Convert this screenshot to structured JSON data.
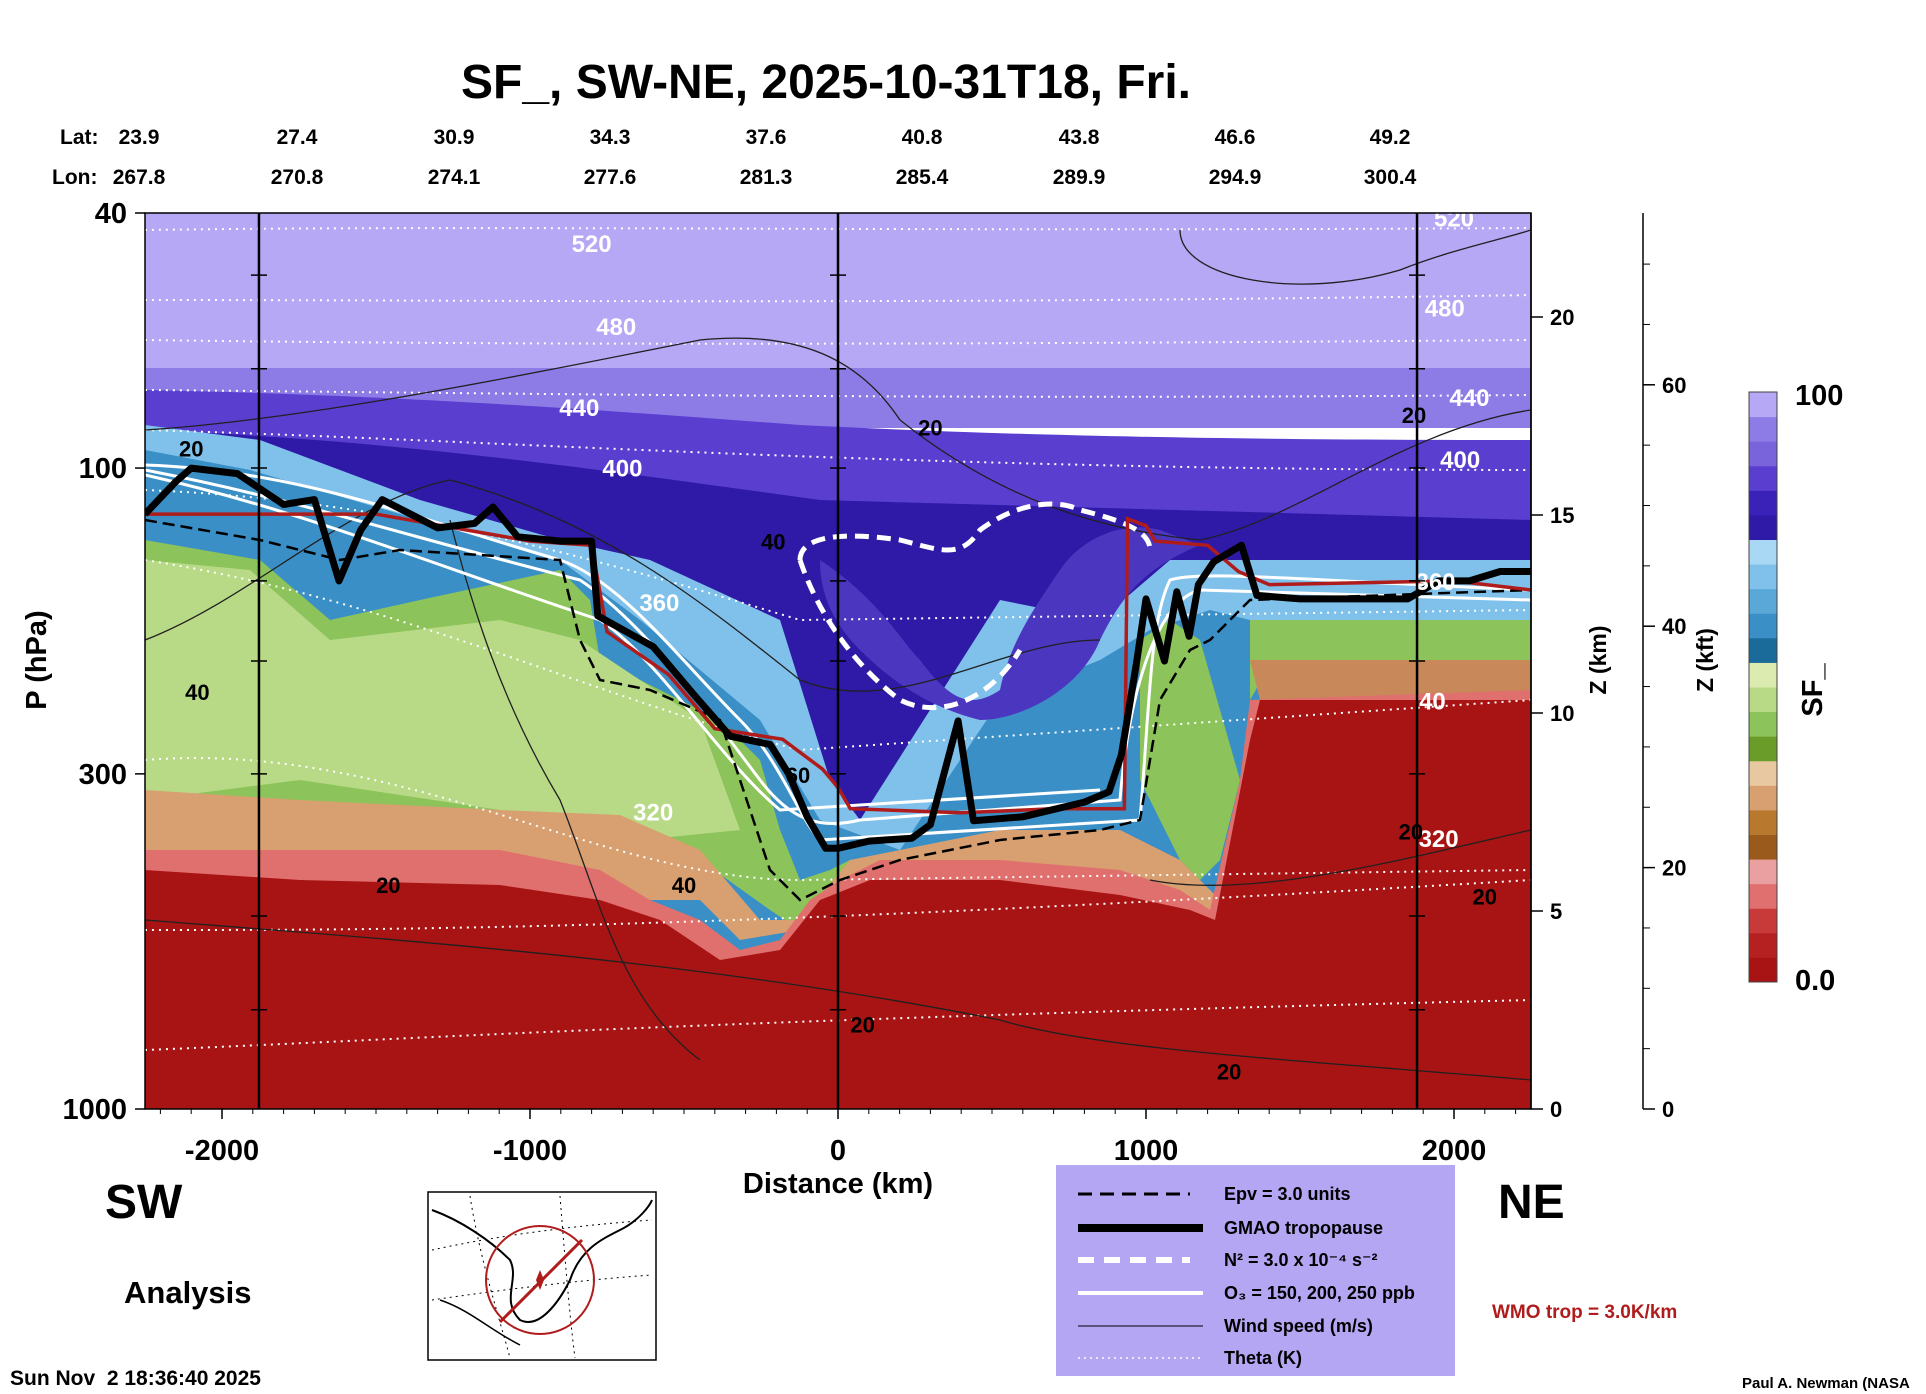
{
  "title": "SF_, SW-NE, 2025-10-31T18, Fri.",
  "lat_label": "Lat:",
  "lon_label": "Lon:",
  "lats": [
    "23.9",
    "27.4",
    "30.9",
    "34.3",
    "37.6",
    "40.8",
    "43.8",
    "46.6",
    "49.2"
  ],
  "lons": [
    "267.8",
    "270.8",
    "274.1",
    "277.6",
    "281.3",
    "285.4",
    "289.9",
    "294.9",
    "300.4"
  ],
  "direction_left": "SW",
  "direction_right": "NE",
  "analysis_label": "Analysis",
  "timestamp": "Sun Nov  2 18:36:40 2025",
  "author": "Paul A. Newman (NASA",
  "wmo_label": "WMO trop = 3.0K/km",
  "legend": {
    "epv": "Epv = 3.0 units",
    "tropopause": "GMAO tropopause",
    "n2": "N² = 3.0 x 10⁻⁴ s⁻²",
    "o3": "O₃ = 150, 200, 250 ppb",
    "wind": "Wind speed (m/s)",
    "theta": "Theta (K)"
  },
  "colorbar": {
    "label": "SF_",
    "max_label": "100",
    "min_label": "0.0"
  },
  "colors": {
    "stratosphere_high": "#b4a6f2",
    "stratosphere_dark": "#3a22b8",
    "blue_mid": "#3a8fc6",
    "green": "#8cc35a",
    "tan": "#d8a070",
    "red": "#a81414",
    "wmo_red": "#b01c1c"
  },
  "chart_data": {
    "type": "heatmap",
    "xlabel": "Distance (km)",
    "ylabel": "P (hPa)",
    "z_km_label": "Z (km)",
    "z_kft_label": "Z (kft)",
    "x_ticks": [
      -2000,
      -1000,
      0,
      1000,
      2000
    ],
    "x_tick_labels": [
      "-2000",
      "-1000",
      "0",
      "1000",
      "2000"
    ],
    "xlim": [
      -2250,
      2250
    ],
    "ylim_hpa": [
      1000,
      40
    ],
    "y_scale": "log",
    "y_ticks": [
      40,
      100,
      300,
      1000
    ],
    "y_tick_labels": [
      "40",
      "100",
      "300",
      "1000"
    ],
    "z_km_ticks": [
      0,
      5,
      10,
      15,
      20
    ],
    "z_km_tick_labels": [
      "0",
      "5",
      "10",
      "15",
      "20"
    ],
    "z_kft_ticks": [
      0,
      20,
      40,
      60
    ],
    "z_kft_tick_labels": [
      "0",
      "20",
      "40",
      "60"
    ],
    "vertical_lines_km": [
      -1880,
      0,
      1880
    ],
    "colorbar_range": [
      0.0,
      100
    ],
    "theta_labels": [
      {
        "text": "520",
        "x": -800,
        "p": 46
      },
      {
        "text": "480",
        "x": -720,
        "p": 62
      },
      {
        "text": "440",
        "x": -840,
        "p": 83
      },
      {
        "text": "400",
        "x": -700,
        "p": 103
      },
      {
        "text": "360",
        "x": -580,
        "p": 167
      },
      {
        "text": "320",
        "x": -600,
        "p": 355
      },
      {
        "text": "520",
        "x": 2000,
        "p": 42
      },
      {
        "text": "480",
        "x": 1970,
        "p": 58
      },
      {
        "text": "440",
        "x": 2050,
        "p": 80
      },
      {
        "text": "400",
        "x": 2020,
        "p": 100
      },
      {
        "text": "360",
        "x": 1940,
        "p": 155
      },
      {
        "text": "320",
        "x": 1950,
        "p": 390
      },
      {
        "text": "40",
        "x": 1930,
        "p": 238
      }
    ],
    "wind_labels": [
      {
        "text": "20",
        "x": -2100,
        "p": 96
      },
      {
        "text": "40",
        "x": -2080,
        "p": 230
      },
      {
        "text": "20",
        "x": -1460,
        "p": 460
      },
      {
        "text": "40",
        "x": -210,
        "p": 134
      },
      {
        "text": "20",
        "x": 300,
        "p": 89
      },
      {
        "text": "60",
        "x": -130,
        "p": 310
      },
      {
        "text": "40",
        "x": -500,
        "p": 460
      },
      {
        "text": "20",
        "x": 1870,
        "p": 85
      },
      {
        "text": "20",
        "x": 1860,
        "p": 380
      },
      {
        "text": "20",
        "x": 2100,
        "p": 480
      },
      {
        "text": "20",
        "x": 80,
        "p": 760
      },
      {
        "text": "20",
        "x": 1270,
        "p": 900
      }
    ],
    "gmao_tropopause": [
      [
        -2250,
        118
      ],
      [
        -2150,
        105
      ],
      [
        -2100,
        100
      ],
      [
        -1950,
        102
      ],
      [
        -1800,
        114
      ],
      [
        -1700,
        112
      ],
      [
        -1620,
        150
      ],
      [
        -1550,
        125
      ],
      [
        -1480,
        112
      ],
      [
        -1300,
        124
      ],
      [
        -1180,
        122
      ],
      [
        -1120,
        115
      ],
      [
        -1040,
        128
      ],
      [
        -900,
        130
      ],
      [
        -800,
        130
      ],
      [
        -780,
        170
      ],
      [
        -600,
        190
      ],
      [
        -460,
        228
      ],
      [
        -350,
        262
      ],
      [
        -220,
        270
      ],
      [
        -160,
        300
      ],
      [
        -100,
        350
      ],
      [
        -40,
        392
      ],
      [
        0,
        392
      ],
      [
        100,
        382
      ],
      [
        240,
        378
      ],
      [
        300,
        360
      ],
      [
        390,
        248
      ],
      [
        440,
        355
      ],
      [
        600,
        350
      ],
      [
        800,
        332
      ],
      [
        880,
        320
      ],
      [
        920,
        280
      ],
      [
        970,
        200
      ],
      [
        1000,
        160
      ],
      [
        1060,
        200
      ],
      [
        1100,
        156
      ],
      [
        1140,
        183
      ],
      [
        1170,
        152
      ],
      [
        1220,
        140
      ],
      [
        1310,
        132
      ],
      [
        1360,
        158
      ],
      [
        1500,
        160
      ],
      [
        1700,
        160
      ],
      [
        1850,
        160
      ],
      [
        1950,
        150
      ],
      [
        2050,
        150
      ],
      [
        2150,
        145
      ],
      [
        2250,
        145
      ]
    ],
    "wmo_tropopause": [
      [
        -2250,
        118
      ],
      [
        -1500,
        118
      ],
      [
        -1000,
        130
      ],
      [
        -800,
        132
      ],
      [
        -750,
        180
      ],
      [
        -550,
        210
      ],
      [
        -400,
        255
      ],
      [
        -180,
        265
      ],
      [
        -50,
        295
      ],
      [
        0,
        315
      ],
      [
        40,
        340
      ],
      [
        400,
        345
      ],
      [
        700,
        340
      ],
      [
        930,
        340
      ],
      [
        940,
        120
      ],
      [
        1000,
        123
      ],
      [
        1030,
        130
      ],
      [
        1200,
        132
      ],
      [
        1300,
        145
      ],
      [
        1400,
        152
      ],
      [
        2000,
        150
      ],
      [
        2250,
        155
      ]
    ]
  }
}
